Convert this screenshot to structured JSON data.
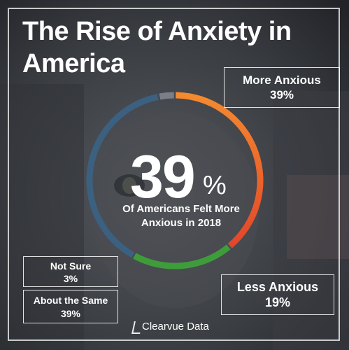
{
  "title": "The Rise of Anxiety in America",
  "headline": {
    "value": "39",
    "unit": "%",
    "caption": "Of Americans Felt More Anxious in 2018"
  },
  "brand": "Clearvue Data",
  "labels": {
    "more_anxious": {
      "name": "More Anxious",
      "value": "39%"
    },
    "less_anxious": {
      "name": "Less Anxious",
      "value": "19%"
    },
    "not_sure": {
      "name": "Not Sure",
      "value": "3%"
    },
    "about_same": {
      "name": "About the Same",
      "value": "39%"
    }
  },
  "colors": {
    "more": "#f07a2a",
    "less": "#3e9d3a",
    "same": "#3c6080",
    "not_sure": "#7a7e86",
    "text": "#ffffff"
  },
  "chart_data": {
    "type": "pie",
    "title": "The Rise of Anxiety in America",
    "categories": [
      "More Anxious",
      "Less Anxious",
      "About the Same",
      "Not Sure"
    ],
    "values": [
      39,
      19,
      39,
      3
    ],
    "colors": [
      "#f07a2a",
      "#3e9d3a",
      "#3c6080",
      "#7a7e86"
    ]
  }
}
